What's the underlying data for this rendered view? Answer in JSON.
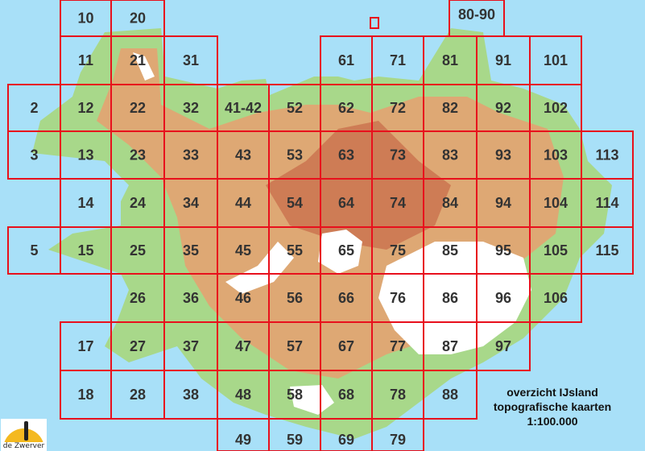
{
  "title_lines": [
    "overzicht IJsland",
    "topografische kaarten",
    "1:100.000"
  ],
  "logo_text": "de Zwerver",
  "colors": {
    "sea": "#a8e0f8",
    "grid": "#e8101c",
    "lowland": "#a8d88a",
    "highland": "#e8a070",
    "glacier": "#ffffff",
    "label": "#333333"
  },
  "tiles": [
    "10",
    "20",
    "80-90",
    "11",
    "21",
    "31",
    "61",
    "71",
    "81",
    "91",
    "101",
    "2",
    "12",
    "22",
    "32",
    "41-42",
    "52",
    "62",
    "72",
    "82",
    "92",
    "102",
    "3",
    "13",
    "23",
    "33",
    "43",
    "53",
    "63",
    "73",
    "83",
    "93",
    "103",
    "113",
    "14",
    "24",
    "34",
    "44",
    "54",
    "64",
    "74",
    "84",
    "94",
    "104",
    "114",
    "5",
    "15",
    "25",
    "35",
    "45",
    "55",
    "65",
    "75",
    "85",
    "95",
    "105",
    "115",
    "26",
    "36",
    "46",
    "56",
    "66",
    "76",
    "86",
    "96",
    "106",
    "17",
    "27",
    "37",
    "47",
    "57",
    "67",
    "77",
    "87",
    "97",
    "18",
    "28",
    "38",
    "48",
    "58",
    "68",
    "78",
    "88",
    "49",
    "59",
    "69",
    "79"
  ]
}
